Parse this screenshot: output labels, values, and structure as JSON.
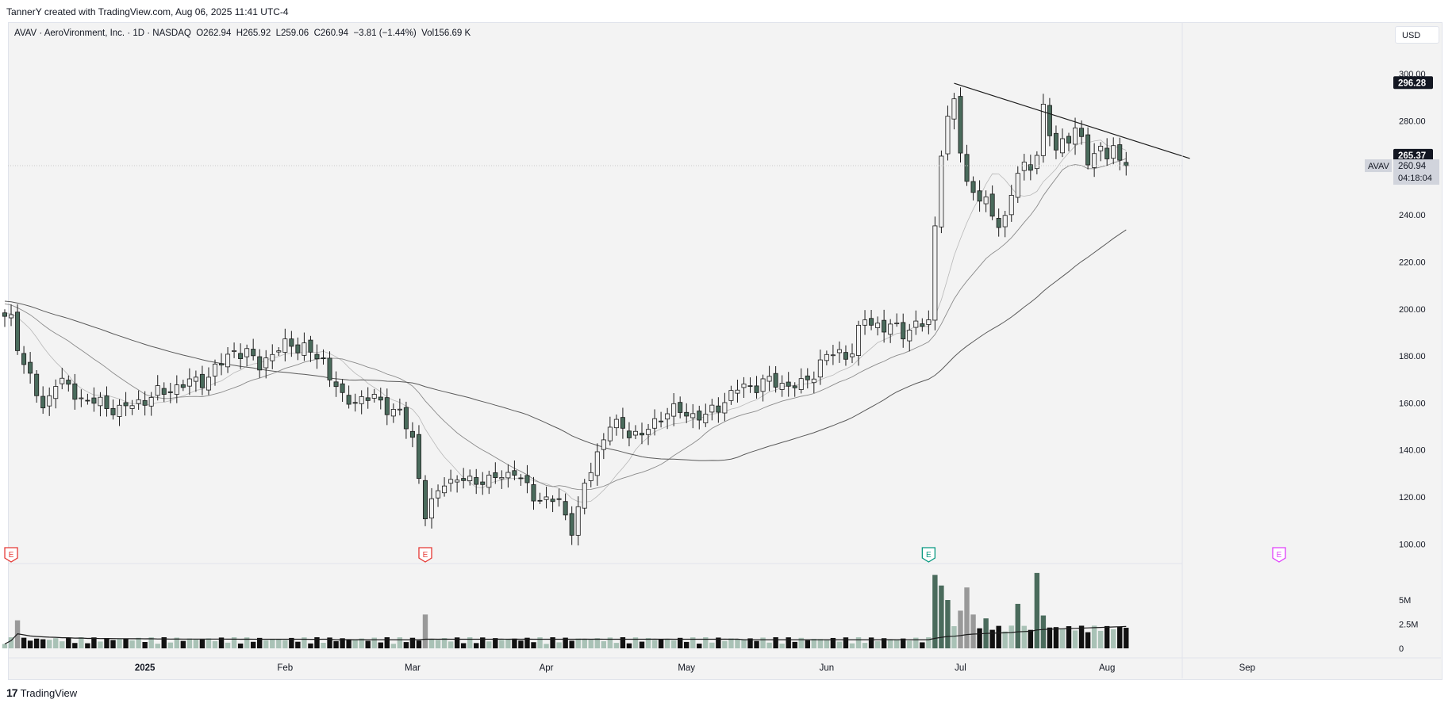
{
  "header": {
    "credit": "TannerY created with TradingView.com, Aug 06, 2025 11:41 UTC-4"
  },
  "legend": {
    "symbol": "AVAV · AeroVironment, Inc. · 1D · NASDAQ",
    "open": "O262.94",
    "high": "H265.92",
    "low": "L259.06",
    "close": "C260.94",
    "change": "−3.81 (−1.44%)",
    "volume": "Vol156.69 K"
  },
  "currency": "USD",
  "price_tags": {
    "trend_level": "296.28",
    "ma_level": "265.37",
    "symbol": "AVAV",
    "last": "260.94",
    "countdown": "04:18:04"
  },
  "footer": {
    "logo_mark": "17",
    "logo_text": "TradingView"
  },
  "colors": {
    "background": "#f3f3f3",
    "up_body": "#f1f1f1",
    "down_body": "#4a6b5c",
    "wick": "#1c1c1c",
    "ma_fast": "#b8b8b8",
    "ma_mid": "#8a8a8a",
    "ma_slow": "#5a5a5a",
    "vol_up": "#a9c2b6",
    "vol_down": "#111111",
    "earnings_past": "#e53935",
    "earnings_recent": "#089981",
    "earnings_future": "#e040fb"
  },
  "chart_data": {
    "type": "candlestick",
    "y_axis": {
      "min": 92,
      "max": 322,
      "ticks": [
        "100.00",
        "120.00",
        "140.00",
        "160.00",
        "180.00",
        "200.00",
        "220.00",
        "240.00",
        "260.00",
        "280.00",
        "300.00"
      ]
    },
    "volume_axis": {
      "ticks": [
        "0",
        "2.5M",
        "5M"
      ]
    },
    "x_axis": {
      "labels": [
        {
          "text": "2025",
          "date": "2025-01-02"
        },
        {
          "text": "Feb",
          "date": "2025-02-03"
        },
        {
          "text": "Mar",
          "date": "2025-03-03"
        },
        {
          "text": "Apr",
          "date": "2025-04-01"
        },
        {
          "text": "May",
          "date": "2025-05-01"
        },
        {
          "text": "Jun",
          "date": "2025-06-02"
        },
        {
          "text": "Jul",
          "date": "2025-07-01"
        },
        {
          "text": "Aug",
          "date": "2025-08-01"
        },
        {
          "text": "Sep",
          "date": "2025-09-02"
        }
      ]
    },
    "price_anchors": [
      {
        "date": "2024-12-04",
        "close": 195
      },
      {
        "date": "2024-12-06",
        "close": 177
      },
      {
        "date": "2024-12-11",
        "close": 157
      },
      {
        "date": "2024-12-13",
        "close": 170
      },
      {
        "date": "2024-12-19",
        "close": 162
      },
      {
        "date": "2024-12-27",
        "close": 157
      },
      {
        "date": "2025-01-08",
        "close": 166
      },
      {
        "date": "2025-01-16",
        "close": 171
      },
      {
        "date": "2025-01-22",
        "close": 183
      },
      {
        "date": "2025-01-28",
        "close": 177
      },
      {
        "date": "2025-02-04",
        "close": 186
      },
      {
        "date": "2025-02-07",
        "close": 181
      },
      {
        "date": "2025-02-11",
        "close": 178
      },
      {
        "date": "2025-02-14",
        "close": 161
      },
      {
        "date": "2025-02-21",
        "close": 162
      },
      {
        "date": "2025-02-27",
        "close": 155
      },
      {
        "date": "2025-03-03",
        "close": 145
      },
      {
        "date": "2025-03-05",
        "close": 112
      },
      {
        "date": "2025-03-10",
        "close": 127
      },
      {
        "date": "2025-03-19",
        "close": 127
      },
      {
        "date": "2025-03-25",
        "close": 131
      },
      {
        "date": "2025-03-28",
        "close": 120
      },
      {
        "date": "2025-04-03",
        "close": 118
      },
      {
        "date": "2025-04-07",
        "close": 106
      },
      {
        "date": "2025-04-09",
        "close": 124
      },
      {
        "date": "2025-04-11",
        "close": 139
      },
      {
        "date": "2025-04-15",
        "close": 151
      },
      {
        "date": "2025-04-22",
        "close": 146
      },
      {
        "date": "2025-04-28",
        "close": 157
      },
      {
        "date": "2025-05-06",
        "close": 154
      },
      {
        "date": "2025-05-13",
        "close": 166
      },
      {
        "date": "2025-05-20",
        "close": 169
      },
      {
        "date": "2025-05-27",
        "close": 167
      },
      {
        "date": "2025-06-02",
        "close": 180
      },
      {
        "date": "2025-06-06",
        "close": 182
      },
      {
        "date": "2025-06-10",
        "close": 196
      },
      {
        "date": "2025-06-13",
        "close": 192
      },
      {
        "date": "2025-06-18",
        "close": 191
      },
      {
        "date": "2025-06-24",
        "close": 194
      },
      {
        "date": "2025-06-25",
        "close": 236
      },
      {
        "date": "2025-06-26",
        "close": 270
      },
      {
        "date": "2025-06-27",
        "close": 278
      },
      {
        "date": "2025-06-30",
        "close": 286
      },
      {
        "date": "2025-07-02",
        "close": 254
      },
      {
        "date": "2025-07-07",
        "close": 243
      },
      {
        "date": "2025-07-10",
        "close": 237
      },
      {
        "date": "2025-07-14",
        "close": 258
      },
      {
        "date": "2025-07-17",
        "close": 266
      },
      {
        "date": "2025-07-18",
        "close": 281
      },
      {
        "date": "2025-07-22",
        "close": 270
      },
      {
        "date": "2025-07-25",
        "close": 274
      },
      {
        "date": "2025-07-29",
        "close": 267
      },
      {
        "date": "2025-08-01",
        "close": 265
      },
      {
        "date": "2025-08-04",
        "close": 268
      },
      {
        "date": "2025-08-06",
        "close": 260.94
      }
    ],
    "trendline": {
      "from": {
        "date": "2025-06-30",
        "price": 296
      },
      "to": {
        "date": "2025-08-20",
        "price": 264
      }
    },
    "earnings": [
      {
        "date": "2024-12-04",
        "kind": "past"
      },
      {
        "date": "2025-03-05",
        "kind": "past"
      },
      {
        "date": "2025-06-24",
        "kind": "recent"
      },
      {
        "date": "2025-09-09",
        "kind": "future"
      }
    ],
    "earnings_label": "E",
    "volume_spikes": [
      {
        "date": "2024-12-05",
        "value": 2.9
      },
      {
        "date": "2025-03-05",
        "value": 3.5
      },
      {
        "date": "2025-06-25",
        "value": 7.6
      },
      {
        "date": "2025-06-26",
        "value": 6.5
      },
      {
        "date": "2025-06-27",
        "value": 5.0
      },
      {
        "date": "2025-07-01",
        "value": 3.9
      },
      {
        "date": "2025-07-02",
        "value": 6.3
      },
      {
        "date": "2025-07-03",
        "value": 3.5
      },
      {
        "date": "2025-07-07",
        "value": 3.1
      },
      {
        "date": "2025-07-14",
        "value": 4.6
      },
      {
        "date": "2025-07-17",
        "value": 7.8
      },
      {
        "date": "2025-07-18",
        "value": 3.4
      }
    ]
  }
}
